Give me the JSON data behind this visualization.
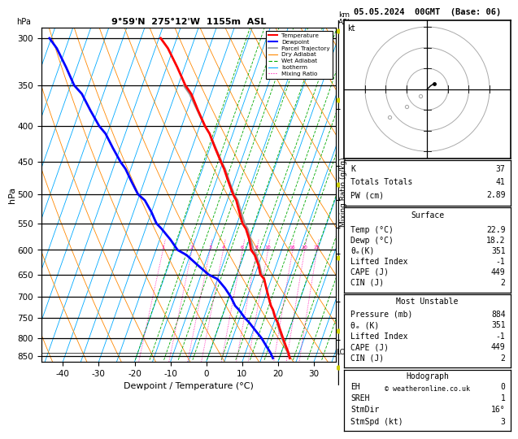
{
  "title_left": "9°59'N  275°12'W  1155m  ASL",
  "title_right": "05.05.2024  00GMT  (Base: 06)",
  "xlabel": "Dewpoint / Temperature (°C)",
  "ylabel_left": "hPa",
  "pressure_ticks": [
    300,
    350,
    400,
    450,
    500,
    550,
    600,
    650,
    700,
    750,
    800,
    850
  ],
  "xlim": [
    -46,
    36
  ],
  "pmin": 290,
  "pmax": 865,
  "skew": 30.0,
  "temp_profile_p": [
    855,
    840,
    820,
    800,
    780,
    760,
    750,
    730,
    720,
    700,
    680,
    660,
    650,
    630,
    610,
    600,
    580,
    560,
    550,
    530,
    510,
    500,
    480,
    460,
    450,
    430,
    410,
    400,
    380,
    360,
    350,
    330,
    310,
    300
  ],
  "temp_profile_T": [
    22.9,
    22.0,
    20.5,
    19.0,
    17.5,
    16.0,
    15.0,
    13.5,
    12.5,
    11.0,
    9.5,
    8.0,
    6.5,
    5.0,
    3.0,
    1.5,
    0.0,
    -2.0,
    -3.5,
    -5.5,
    -7.5,
    -9.0,
    -11.5,
    -14.0,
    -15.5,
    -18.5,
    -21.5,
    -23.5,
    -27.0,
    -30.5,
    -33.0,
    -37.0,
    -41.5,
    -44.5
  ],
  "dewp_profile_p": [
    855,
    840,
    820,
    800,
    780,
    760,
    750,
    730,
    720,
    700,
    680,
    660,
    650,
    630,
    610,
    600,
    580,
    560,
    550,
    530,
    510,
    500,
    480,
    460,
    450,
    430,
    410,
    400,
    380,
    360,
    350,
    330,
    310,
    300
  ],
  "dewp_profile_T": [
    18.2,
    17.0,
    15.0,
    13.0,
    10.5,
    8.0,
    6.5,
    4.0,
    2.5,
    0.5,
    -2.0,
    -5.0,
    -8.0,
    -12.0,
    -16.0,
    -19.0,
    -22.0,
    -25.5,
    -27.5,
    -30.0,
    -33.0,
    -35.5,
    -38.5,
    -41.5,
    -43.5,
    -47.0,
    -50.5,
    -53.0,
    -57.0,
    -61.0,
    -64.0,
    -68.0,
    -72.5,
    -75.5
  ],
  "parcel_profile_p": [
    855,
    840,
    820,
    800,
    780,
    760,
    750,
    730,
    720,
    700,
    680,
    660,
    650,
    630,
    610,
    600,
    580,
    560,
    550,
    530,
    510,
    500,
    480,
    460,
    450,
    430,
    410,
    400,
    380,
    360,
    350
  ],
  "parcel_profile_T": [
    22.9,
    21.8,
    20.2,
    18.7,
    17.2,
    15.8,
    14.8,
    13.4,
    12.4,
    11.0,
    9.5,
    8.0,
    6.9,
    5.3,
    3.5,
    2.2,
    0.4,
    -1.5,
    -2.9,
    -5.0,
    -7.1,
    -8.7,
    -11.2,
    -13.7,
    -15.3,
    -18.3,
    -21.5,
    -23.6,
    -27.2,
    -31.0,
    -33.5
  ],
  "lcl_pressure": 840,
  "bg_color": "#ffffff",
  "isotherm_color": "#00aaff",
  "dry_adiabat_color": "#ff8800",
  "wet_adiabat_color": "#00aa00",
  "mixing_ratio_color": "#ff00aa",
  "temp_color": "#ff0000",
  "dewp_color": "#0000ff",
  "parcel_color": "#999999",
  "km_ticks": [
    2,
    3,
    4,
    5,
    6,
    7,
    8
  ],
  "km_pressures": [
    806,
    710,
    608,
    558,
    510,
    456,
    378
  ],
  "mixing_ratios": [
    1,
    2,
    3,
    4,
    6,
    8,
    10,
    16,
    20,
    25
  ],
  "K": 37,
  "TT": 41,
  "PW": 2.89,
  "surf_temp": 22.9,
  "surf_dewp": 18.2,
  "surf_theta_e": 351,
  "surf_li": -1,
  "surf_cape": 449,
  "surf_cin": 2,
  "mu_pres": 884,
  "mu_theta_e": 351,
  "mu_li": -1,
  "mu_cape": 449,
  "mu_cin": 2,
  "hodo_eh": 0,
  "hodo_sreh": 1,
  "hodo_stmdir": "16°",
  "hodo_stmspd": 3,
  "copyright": "© weatheronline.co.uk"
}
